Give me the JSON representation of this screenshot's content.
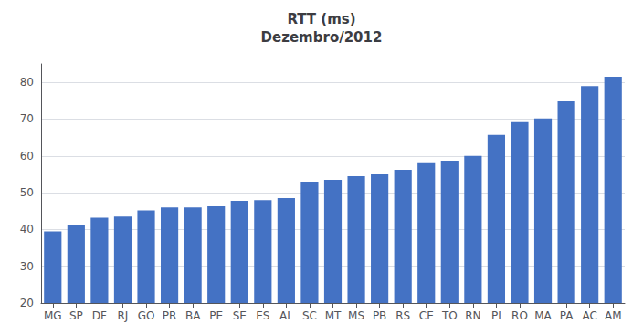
{
  "chart_data": {
    "type": "bar",
    "title": "RTT (ms)\nDezembro/2012",
    "categories": [
      "MG",
      "SP",
      "DF",
      "RJ",
      "GO",
      "PR",
      "BA",
      "PE",
      "SE",
      "ES",
      "AL",
      "SC",
      "MT",
      "MS",
      "PB",
      "RS",
      "CE",
      "TO",
      "RN",
      "PI",
      "RO",
      "MA",
      "PA",
      "AC",
      "AM"
    ],
    "values": [
      39.5,
      41.2,
      43.2,
      43.5,
      45.2,
      46.0,
      46.0,
      46.3,
      47.8,
      48.0,
      48.5,
      53.0,
      53.5,
      54.5,
      55.0,
      56.2,
      58.0,
      58.7,
      60.0,
      65.7,
      69.2,
      70.2,
      74.8,
      79.0,
      81.5
    ],
    "color": "#4472C4",
    "ylim": [
      20,
      85
    ],
    "yticks": [
      20,
      30,
      40,
      50,
      60,
      70,
      80
    ],
    "grid": true
  }
}
